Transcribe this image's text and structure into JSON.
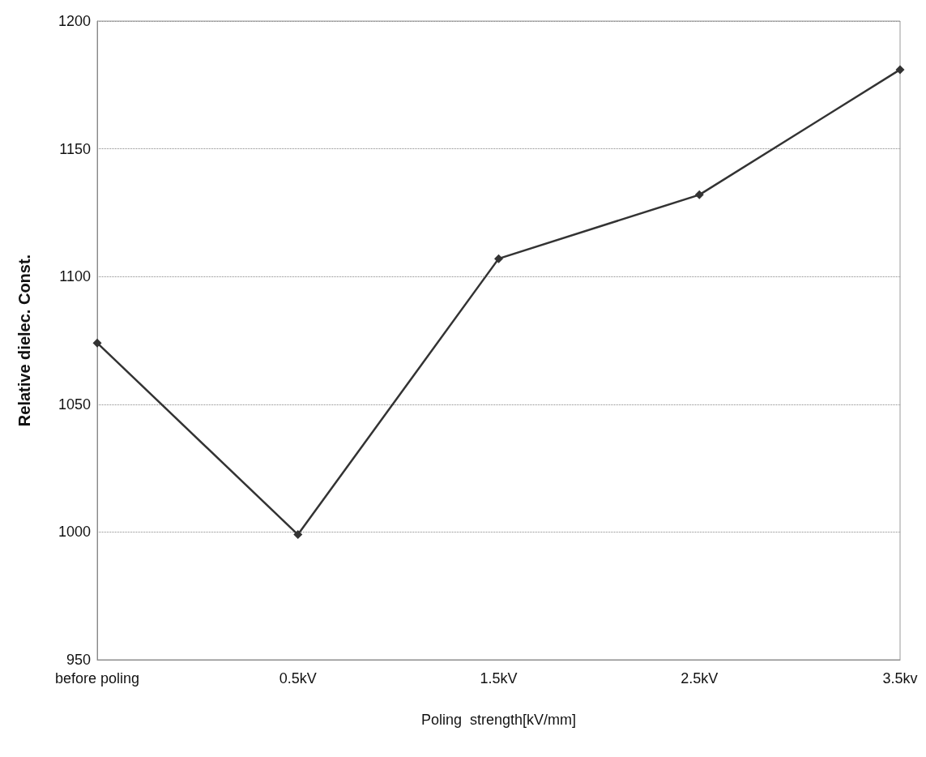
{
  "chart_data": {
    "type": "line",
    "xlabel": "Poling  strength[kV/mm]",
    "ylabel": "Relative dielec. Const.",
    "categories": [
      "before poling",
      "0.5kV",
      "1.5kV",
      "2.5kV",
      "3.5kv"
    ],
    "series": [
      {
        "color": "#333333",
        "values": [
          1074,
          999,
          1107,
          1132,
          1181
        ]
      }
    ],
    "ylim": [
      950,
      1200
    ],
    "yticks": [
      950,
      1000,
      1050,
      1100,
      1150,
      1200
    ],
    "grid": "y",
    "marker": "diamond",
    "line_style": "solid"
  }
}
